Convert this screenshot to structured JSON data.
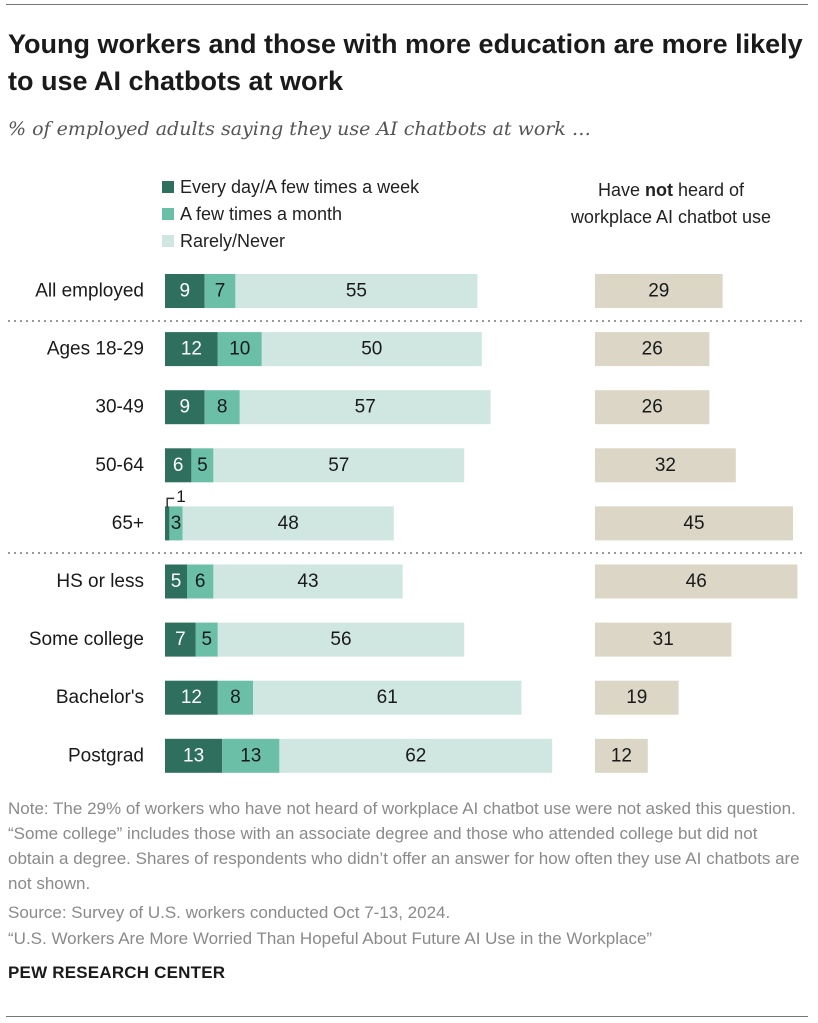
{
  "title": "Young workers and those with more education are more likely to use AI chatbots at work",
  "subtitle": "% of employed adults saying they use AI chatbots at work …",
  "side_header": {
    "pre": "Have ",
    "bold": "not",
    "post": " heard of workplace AI chatbot use"
  },
  "colors": {
    "dark": "#2e6f5e",
    "mid": "#6bbfa7",
    "light": "#cfe7e0",
    "beige": "#dbd6c6",
    "rule": "#777777"
  },
  "note": "Note: The 29% of workers who have not heard of workplace AI chatbot use were not asked this question. “Some college” includes those with an associate degree and those who attended college but did not obtain a degree. Shares of respondents who didn’t offer an answer for how often they use AI chatbots are not shown.",
  "source": "Source: Survey of U.S. workers conducted Oct 7-13, 2024.",
  "report": "“U.S. Workers Are More Worried Than Hopeful About Future AI Use in the Workplace”",
  "brand": "PEW RESEARCH CENTER",
  "chart_data": {
    "type": "bar",
    "orientation": "horizontal",
    "stacked": true,
    "categories": [
      "All employed",
      "Ages 18-29",
      "30-49",
      "50-64",
      "65+",
      "HS or less",
      "Some college",
      "Bachelor's",
      "Postgrad"
    ],
    "groups": [
      [
        "All employed"
      ],
      [
        "Ages 18-29",
        "30-49",
        "50-64",
        "65+"
      ],
      [
        "HS or less",
        "Some college",
        "Bachelor's",
        "Postgrad"
      ]
    ],
    "series": [
      {
        "name": "Every day/A few times a week",
        "values": [
          9,
          12,
          9,
          6,
          1,
          5,
          7,
          12,
          13
        ]
      },
      {
        "name": "A few times a month",
        "values": [
          7,
          10,
          8,
          5,
          3,
          6,
          5,
          8,
          13
        ]
      },
      {
        "name": "Rarely/Never",
        "values": [
          55,
          50,
          57,
          57,
          48,
          43,
          56,
          61,
          62
        ]
      }
    ],
    "side_series": {
      "name": "Have not heard of workplace AI chatbot use",
      "values": [
        29,
        26,
        26,
        32,
        45,
        46,
        31,
        19,
        12
      ]
    },
    "annotations": [
      {
        "category": "65+",
        "series": "Every day/A few times a week",
        "text": "1",
        "callout": true
      }
    ]
  }
}
